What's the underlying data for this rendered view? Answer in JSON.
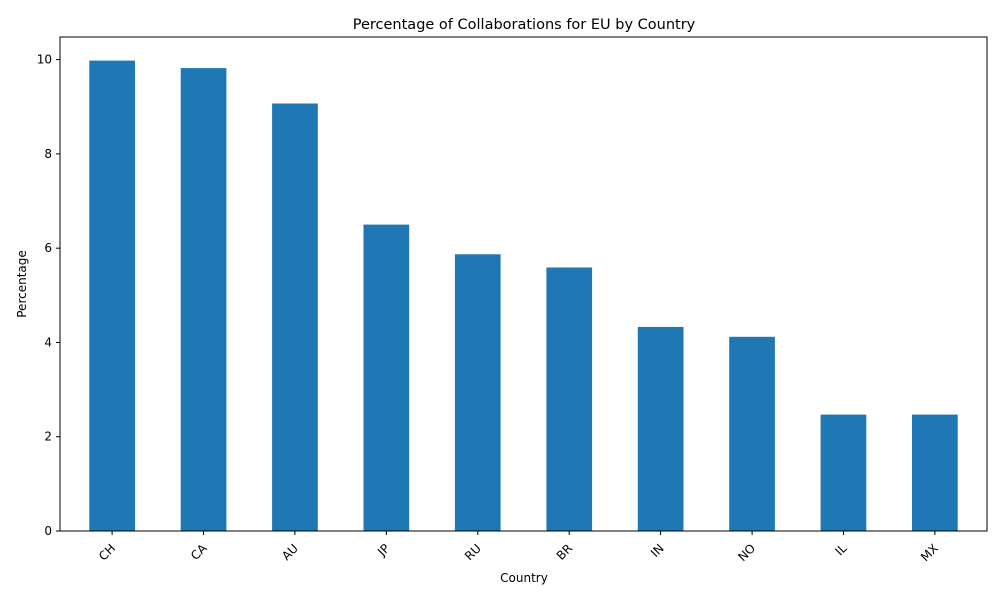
{
  "chart_data": {
    "type": "bar",
    "title": "Percentage of Collaborations for EU by Country",
    "xlabel": "Country",
    "ylabel": "Percentage",
    "categories": [
      "CH",
      "CA",
      "AU",
      "JP",
      "RU",
      "BR",
      "IN",
      "NO",
      "IL",
      "MX"
    ],
    "values": [
      9.98,
      9.82,
      9.07,
      6.5,
      5.87,
      5.59,
      4.33,
      4.12,
      2.47,
      2.47
    ],
    "ylim": [
      0,
      10.48
    ],
    "yticks": [
      0,
      2,
      4,
      6,
      8,
      10
    ],
    "grid": false,
    "legend": "none",
    "bar_color": "#1f77b4"
  }
}
